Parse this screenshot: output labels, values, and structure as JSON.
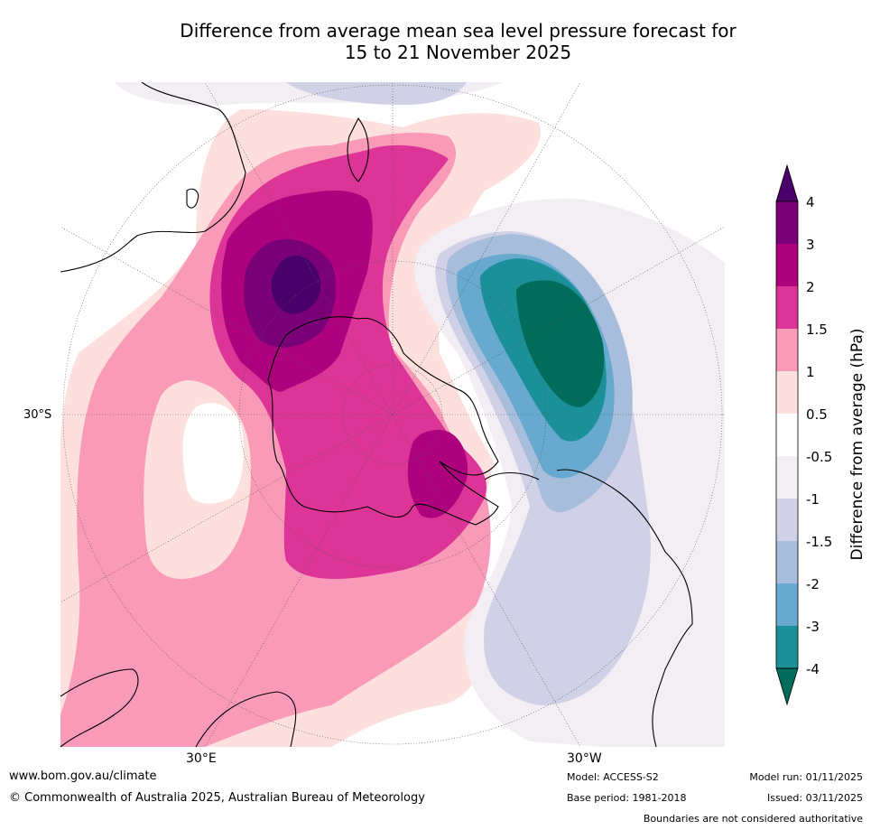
{
  "title_line1": "Difference from average mean sea level pressure forecast for",
  "title_line2": "15 to 21 November 2025",
  "map": {
    "lat_label": "30°S",
    "lon_labels": [
      "30°E",
      "30°W"
    ]
  },
  "colorbar": {
    "label": "Difference from average (hPa)",
    "ticks": [
      "4",
      "3",
      "2",
      "1.5",
      "1",
      "0.5",
      "-0.5",
      "-1",
      "-1.5",
      "-2",
      "-3",
      "-4"
    ],
    "colors": {
      "gt4": "#4a006a",
      "3_4": "#7a0077",
      "2_3": "#ad017e",
      "1.5_2": "#dd3497",
      "1_1.5": "#f99bb8",
      "0.5_1": "#fde0dd",
      "-0.5_0.5": "#ffffff",
      "-1_-0.5": "#f2eef4",
      "-1.5_-1": "#d0d1e6",
      "-2_-1.5": "#a6bddb",
      "-3_-2": "#67a9cf",
      "-4_-3": "#1c9099",
      "lt-4": "#016c59"
    }
  },
  "footer": {
    "website": "www.bom.gov.au/climate",
    "copyright": "© Commonwealth of Australia 2025, Australian Bureau of Meteorology",
    "model": "Model: ACCESS-S2",
    "base_period": "Base period: 1981-2018",
    "model_run": "Model run: 01/11/2025",
    "issued": "Issued: 03/11/2025",
    "disclaimer": "Boundaries are not considered authoritative"
  }
}
